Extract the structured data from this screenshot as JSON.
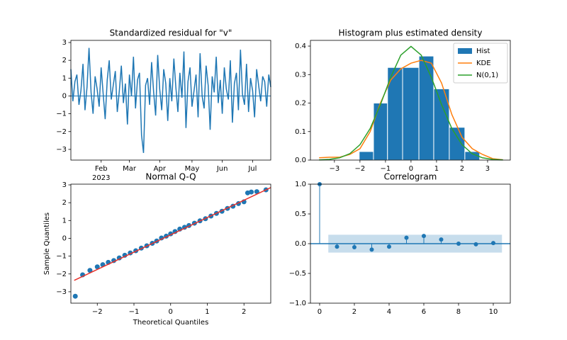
{
  "chart_data": [
    {
      "type": "line",
      "title": "Standardized residual for \"v\"",
      "color": "#1f77b4",
      "values": [
        1.5,
        -0.3,
        0.8,
        1.2,
        -0.5,
        0.3,
        1.8,
        -0.8,
        0.5,
        2.7,
        0.2,
        -1.0,
        1.1,
        0.4,
        -0.6,
        1.6,
        0.1,
        -1.3,
        0.9,
        2.0,
        -0.2,
        0.6,
        1.4,
        -0.9,
        0.3,
        1.7,
        -0.4,
        0.7,
        -1.6,
        1.2,
        0.0,
        2.2,
        -0.7,
        0.9,
        1.3,
        -2.2,
        -3.2,
        0.6,
        1.0,
        -0.5,
        1.9,
        0.2,
        -1.1,
        2.3,
        0.4,
        -0.8,
        1.5,
        0.7,
        -1.4,
        1.0,
        -0.3,
        2.1,
        0.5,
        -0.9,
        1.3,
        -0.1,
        2.5,
        -1.8,
        0.8,
        1.6,
        -0.6,
        0.3,
        1.2,
        -1.2,
        2.4,
        0.0,
        -0.7,
        1.7,
        0.6,
        -1.9,
        1.1,
        0.2,
        2.2,
        -0.4,
        0.9,
        -1.0,
        1.6,
        0.4,
        -0.2,
        2.0,
        -1.5,
        0.7,
        1.3,
        -0.8,
        2.6,
        0.1,
        -0.5,
        1.8,
        -0.9,
        1.0,
        0.3,
        -1.2,
        1.5,
        0.6,
        -0.3,
        1.1,
        0.8,
        -0.6,
        1.2,
        0.5
      ],
      "hline": 0,
      "xlim": [
        0,
        99
      ],
      "xticks": [
        {
          "value": 15,
          "label": "Feb"
        },
        {
          "value": 29,
          "label": "Mar"
        },
        {
          "value": 44,
          "label": "Apr"
        },
        {
          "value": 60,
          "label": "May"
        },
        {
          "value": 75,
          "label": "Jun"
        },
        {
          "value": 90,
          "label": "Jul"
        }
      ],
      "xtick_year": "2023",
      "ylim": [
        -3.6,
        3.12
      ],
      "yticks": [
        {
          "value": -3,
          "label": "−3"
        },
        {
          "value": -2,
          "label": "−2"
        },
        {
          "value": -1,
          "label": "−1"
        },
        0,
        1,
        2,
        3
      ]
    },
    {
      "type": "histogram",
      "title": "Histogram plus estimated density",
      "name": "Hist",
      "color": "#1f77b4",
      "bins": [
        -2.03,
        -1.47,
        -0.92,
        -0.33,
        0.31,
        0.89,
        1.5,
        2.11,
        2.69
      ],
      "values": [
        0.03,
        0.2,
        0.325,
        0.325,
        0.365,
        0.25,
        0.115,
        0.03
      ],
      "series": [
        {
          "name": "KDE",
          "color": "#ff7f0e",
          "x": [
            -3.6,
            -3.2,
            -2.8,
            -2.4,
            -2.0,
            -1.6,
            -1.2,
            -0.8,
            -0.4,
            0,
            0.4,
            0.8,
            1.2,
            1.6,
            2.0,
            2.4,
            2.8,
            3.2,
            3.6
          ],
          "values": [
            0.008,
            0.01,
            0.01,
            0.02,
            0.04,
            0.1,
            0.2,
            0.28,
            0.32,
            0.34,
            0.35,
            0.34,
            0.27,
            0.16,
            0.08,
            0.04,
            0.02,
            0.005,
            0.001
          ]
        },
        {
          "name": "N(0,1)",
          "color": "#2ca02c",
          "x": [
            -3.6,
            -3.2,
            -2.8,
            -2.4,
            -2.0,
            -1.6,
            -1.2,
            -0.8,
            -0.4,
            0,
            0.4,
            0.8,
            1.2,
            1.6,
            2.0,
            2.4,
            2.8,
            3.2,
            3.6
          ],
          "values": [
            0.0006,
            0.0024,
            0.0079,
            0.0224,
            0.054,
            0.1109,
            0.1942,
            0.2897,
            0.3683,
            0.3989,
            0.3683,
            0.2897,
            0.1942,
            0.1109,
            0.054,
            0.0224,
            0.0079,
            0.0024,
            0.0006
          ]
        }
      ],
      "legend": "upper right",
      "xlim": [
        -3.94,
        3.89
      ],
      "xticks": [
        {
          "value": -3,
          "label": "−3"
        },
        {
          "value": -2,
          "label": "−2"
        },
        {
          "value": -1,
          "label": "−1"
        },
        0,
        1,
        2,
        3
      ],
      "ylim": [
        0,
        0.42
      ],
      "yticks": [
        {
          "value": 0,
          "label": "0.0"
        },
        0.1,
        0.2,
        0.3,
        0.4
      ]
    },
    {
      "type": "scatter",
      "title": "Normal Q-Q",
      "xlabel": "Theoretical Quantiles",
      "ylabel": "Sample Quantiles",
      "color": "#1f77b4",
      "x": [
        -2.6,
        -2.4,
        -2.2,
        -2.0,
        -1.85,
        -1.7,
        -1.55,
        -1.4,
        -1.25,
        -1.1,
        -0.95,
        -0.8,
        -0.65,
        -0.5,
        -0.38,
        -0.25,
        -0.12,
        0.0,
        0.12,
        0.25,
        0.38,
        0.5,
        0.65,
        0.8,
        0.95,
        1.1,
        1.25,
        1.4,
        1.55,
        1.7,
        1.85,
        2.0,
        2.1,
        2.2,
        2.35,
        2.6
      ],
      "values": [
        -3.25,
        -2.05,
        -1.8,
        -1.6,
        -1.48,
        -1.35,
        -1.25,
        -1.1,
        -0.95,
        -0.82,
        -0.7,
        -0.55,
        -0.42,
        -0.28,
        -0.15,
        0.02,
        0.12,
        0.25,
        0.38,
        0.52,
        0.62,
        0.72,
        0.85,
        0.98,
        1.1,
        1.25,
        1.4,
        1.52,
        1.68,
        1.8,
        1.95,
        2.05,
        2.55,
        2.6,
        2.62,
        2.72
      ],
      "series": [
        {
          "color": "#e8312a",
          "x": [
            -2.63,
            2.73
          ],
          "values": [
            -2.36,
            2.85
          ]
        }
      ],
      "xlim": [
        -2.72,
        2.73
      ],
      "xticks": [
        {
          "value": -2,
          "label": "−2"
        },
        {
          "value": -1,
          "label": "−1"
        },
        0,
        1,
        2
      ],
      "ylim": [
        -3.64,
        3.04
      ],
      "yticks": [
        {
          "value": -3,
          "label": "−3"
        },
        {
          "value": -2,
          "label": "−2"
        },
        {
          "value": -1,
          "label": "−1"
        },
        0,
        1,
        2,
        3
      ]
    },
    {
      "type": "stem",
      "title": "Correlogram",
      "color": "#1f77b4",
      "x": [
        0,
        1,
        2,
        3,
        4,
        5,
        6,
        7,
        8,
        9,
        10
      ],
      "values": [
        1.0,
        -0.05,
        -0.06,
        -0.1,
        -0.05,
        0.1,
        0.13,
        0.07,
        0.0,
        -0.01,
        0.01
      ],
      "hline": 0,
      "band": {
        "x": [
          0.5,
          10.5
        ],
        "lower": -0.15,
        "upper": 0.15
      },
      "xlim": [
        -0.53,
        10.98
      ],
      "xticks": [
        0,
        2,
        4,
        6,
        8,
        10
      ],
      "ylim": [
        -1,
        1
      ],
      "yticks": [
        {
          "value": -1,
          "label": "−1.0"
        },
        {
          "value": -0.5,
          "label": "−0.5"
        },
        {
          "value": 0,
          "label": "0.0"
        },
        0.5,
        {
          "value": 1,
          "label": "1.0"
        }
      ]
    }
  ]
}
